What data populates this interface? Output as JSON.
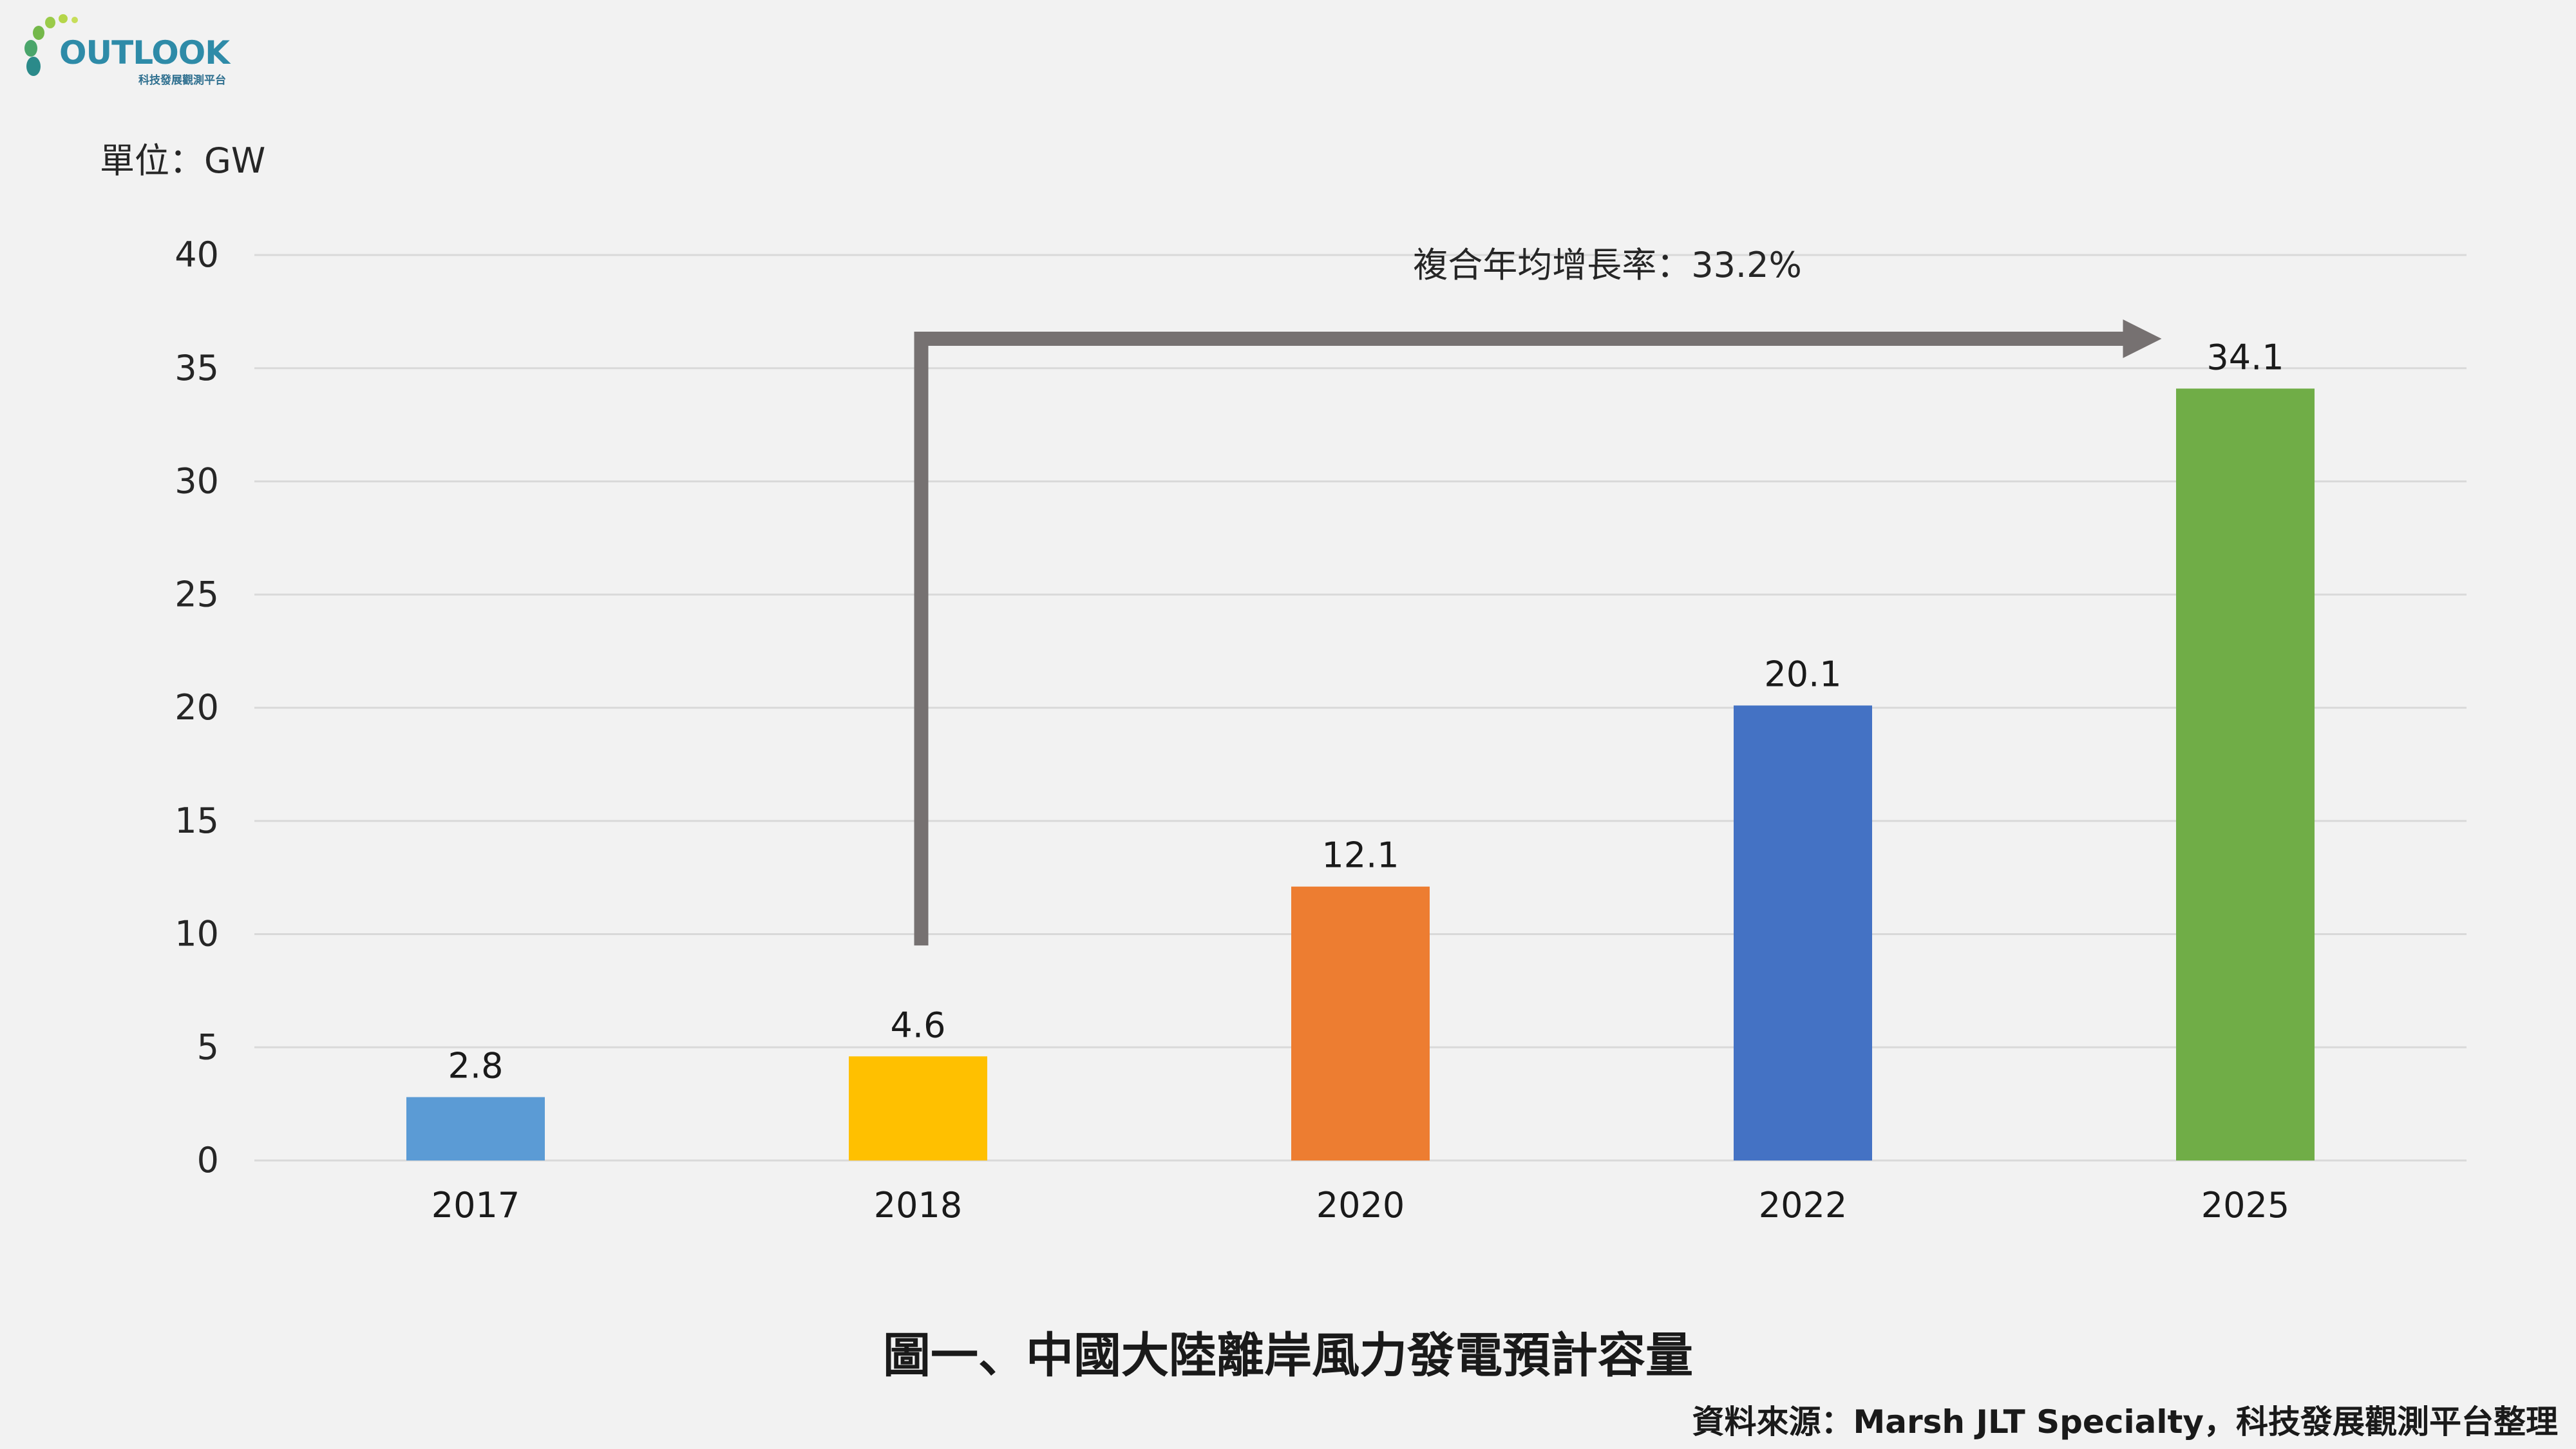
{
  "logo": {
    "word": "OUTLOOK",
    "subtitle": "科技發展觀測平台"
  },
  "unit_label": "單位：GW",
  "annotation": "複合年均增長率：33.2%",
  "caption": "圖一、中國大陸離岸風力發電預計容量",
  "source": "資料來源：Marsh JLT Specialty，科技發展觀測平台整理",
  "colors": {
    "bar_2017": "#5b9bd5",
    "bar_2018": "#ffc000",
    "bar_2020": "#ed7d31",
    "bar_2022": "#4472c4",
    "bar_2025": "#70ad47",
    "arrow": "#767171",
    "grid": "#d9d9d9"
  },
  "chart_data": {
    "type": "bar",
    "title": "",
    "xlabel": "",
    "ylabel": "單位：GW",
    "categories": [
      "2017",
      "2018",
      "2020",
      "2022",
      "2025"
    ],
    "values": [
      2.8,
      4.6,
      12.1,
      20.1,
      34.1
    ],
    "data_labels": [
      "2.8",
      "4.6",
      "12.1",
      "20.1",
      "34.1"
    ],
    "bar_colors": [
      "#5b9bd5",
      "#ffc000",
      "#ed7d31",
      "#4472c4",
      "#70ad47"
    ],
    "ylim": [
      0,
      40
    ],
    "yticks": [
      0,
      5,
      10,
      15,
      20,
      25,
      30,
      35,
      40
    ],
    "grid": true,
    "legend": "none",
    "annotation": {
      "text": "複合年均增長率：33.2%",
      "from": "2018",
      "to": "2025"
    }
  }
}
